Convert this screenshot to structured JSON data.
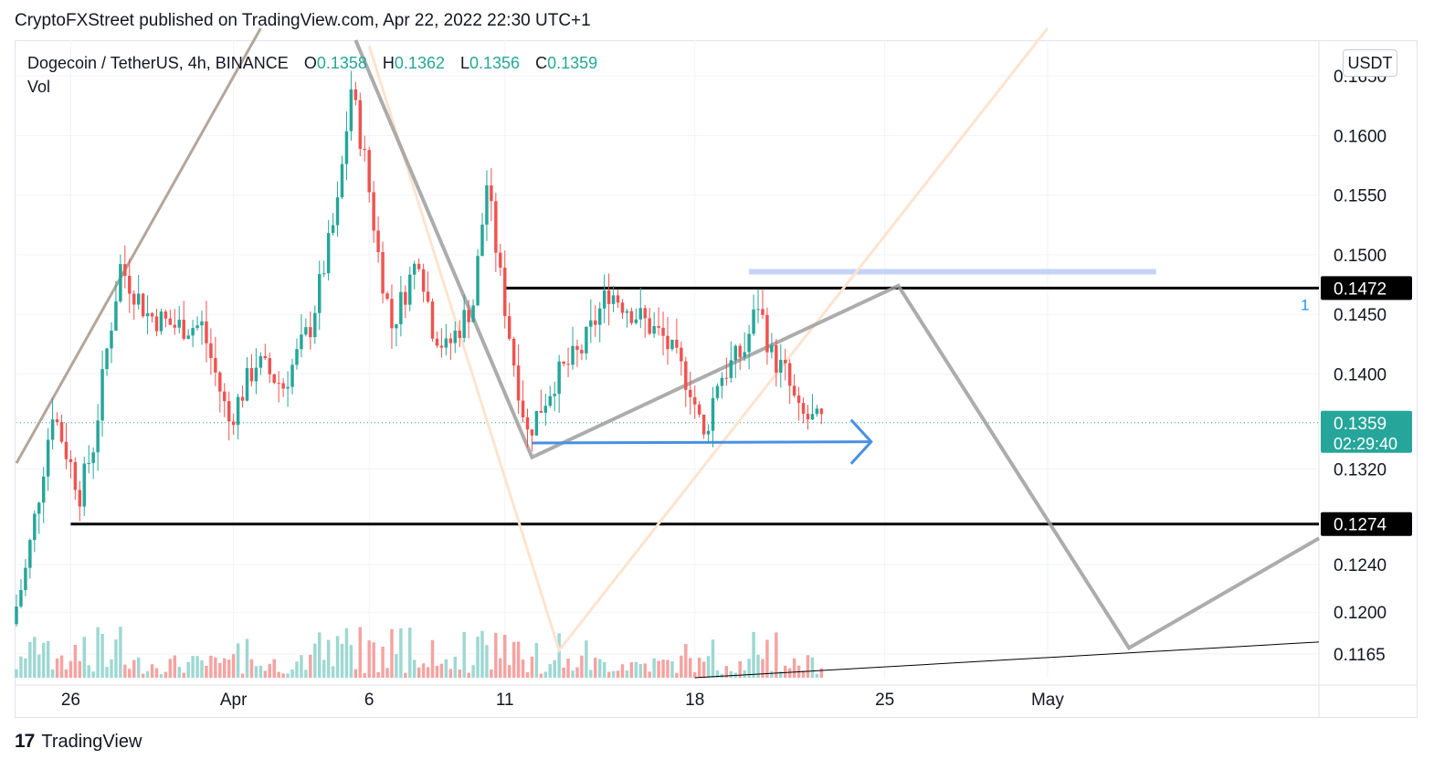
{
  "header": {
    "published": "CryptoFXStreet published on TradingView.com, Apr 22, 2022 22:30 UTC+1"
  },
  "legend": {
    "symbol": "Dogecoin / TetherUS, 4h, BINANCE",
    "open_label": "O",
    "open": "0.1358",
    "high_label": "H",
    "high": "0.1362",
    "low_label": "L",
    "low": "0.1356",
    "close_label": "C",
    "close": "0.1359",
    "volume_label": "Vol"
  },
  "price_axis": {
    "currency": "USDT",
    "ticks": [
      "0.1650",
      "0.1600",
      "0.1550",
      "0.1500",
      "0.1450",
      "0.1400",
      "0.1320",
      "0.1240",
      "0.1200",
      "0.1165"
    ]
  },
  "badges": {
    "resistance": "0.1472",
    "support": "0.1274",
    "current_price": "0.1359",
    "countdown": "02:29:40",
    "marker": "1"
  },
  "time_axis": {
    "ticks": [
      "26",
      "Apr",
      "6",
      "11",
      "18",
      "25",
      "May"
    ]
  },
  "footer": {
    "logo_glyph": "17",
    "brand": "TradingView"
  },
  "colors": {
    "up": "#26a69a",
    "down": "#ef5350",
    "projection": "#9e9e9e",
    "trendline": "#2962ff"
  },
  "chart_data": {
    "type": "candlestick",
    "title": "Dogecoin / TetherUS, 4h, BINANCE",
    "interval": "4h",
    "ylim": [
      0.1145,
      0.168
    ],
    "x_range": [
      "2022-03-24",
      "2022-05-11"
    ],
    "horizontal_levels": [
      0.1472,
      0.1274
    ],
    "current_price": 0.1359,
    "ohlc_last": {
      "open": 0.1358,
      "high": 0.1362,
      "low": 0.1356,
      "close": 0.1359
    },
    "price_path": [
      [
        "2022-03-24",
        0.119
      ],
      [
        "2022-03-24T12",
        0.1235
      ],
      [
        "2022-03-25",
        0.13
      ],
      [
        "2022-03-25T12",
        0.137
      ],
      [
        "2022-03-26",
        0.1335
      ],
      [
        "2022-03-26T12",
        0.13
      ],
      [
        "2022-03-27",
        0.134
      ],
      [
        "2022-03-27T12",
        0.142
      ],
      [
        "2022-03-28",
        0.149
      ],
      [
        "2022-03-29",
        0.145
      ],
      [
        "2022-03-30",
        0.144
      ],
      [
        "2022-03-31",
        0.144
      ],
      [
        "2022-04-01",
        0.136
      ],
      [
        "2022-04-02",
        0.141
      ],
      [
        "2022-04-03",
        0.139
      ],
      [
        "2022-04-04",
        0.144
      ],
      [
        "2022-04-05",
        0.154
      ],
      [
        "2022-04-05T12",
        0.164
      ],
      [
        "2022-04-06",
        0.158
      ],
      [
        "2022-04-06T12",
        0.15
      ],
      [
        "2022-04-07",
        0.144
      ],
      [
        "2022-04-08",
        0.15
      ],
      [
        "2022-04-08T12",
        0.144
      ],
      [
        "2022-04-09",
        0.142
      ],
      [
        "2022-04-10",
        0.146
      ],
      [
        "2022-04-10T12",
        0.156
      ],
      [
        "2022-04-11",
        0.148
      ],
      [
        "2022-04-11T12",
        0.141
      ],
      [
        "2022-04-12",
        0.135
      ],
      [
        "2022-04-13",
        0.1395
      ],
      [
        "2022-04-14",
        0.142
      ],
      [
        "2022-04-15",
        0.147
      ],
      [
        "2022-04-16",
        0.145
      ],
      [
        "2022-04-17",
        0.143
      ],
      [
        "2022-04-18",
        0.139
      ],
      [
        "2022-04-18T12",
        0.1345
      ],
      [
        "2022-04-19",
        0.1395
      ],
      [
        "2022-04-20",
        0.142
      ],
      [
        "2022-04-20T12",
        0.146
      ],
      [
        "2022-04-21",
        0.1415
      ],
      [
        "2022-04-21T12",
        0.14
      ],
      [
        "2022-04-22",
        0.1365
      ],
      [
        "2022-04-22T16",
        0.1359
      ]
    ],
    "projection_path": [
      [
        "2022-04-12",
        0.133
      ],
      [
        "2022-04-25T12",
        0.1474
      ],
      [
        "2022-05-04",
        0.117
      ],
      [
        "2022-05-11",
        0.1262
      ]
    ]
  }
}
